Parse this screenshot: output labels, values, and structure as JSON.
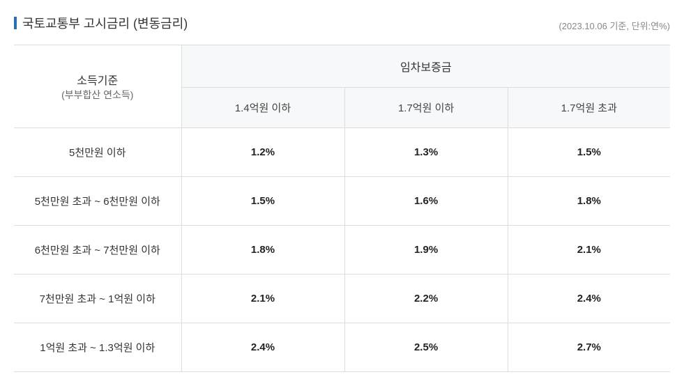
{
  "title": "국토교통부 고시금리 (변동금리)",
  "meta": "(2023.10.06 기준, 단위:연%)",
  "header": {
    "row_label_line1": "소득기준",
    "row_label_line2": "(부부합산 연소득)",
    "group_label": "임차보증금",
    "columns": [
      "1.4억원 이하",
      "1.7억원 이하",
      "1.7억원 초과"
    ]
  },
  "rows": [
    {
      "label": "5천만원 이하",
      "values": [
        "1.2%",
        "1.3%",
        "1.5%"
      ]
    },
    {
      "label": "5천만원 초과 ~ 6천만원 이하",
      "values": [
        "1.5%",
        "1.6%",
        "1.8%"
      ]
    },
    {
      "label": "6천만원 초과 ~ 7천만원 이하",
      "values": [
        "1.8%",
        "1.9%",
        "2.1%"
      ]
    },
    {
      "label": "7천만원 초과 ~ 1억원 이하",
      "values": [
        "2.1%",
        "2.2%",
        "2.4%"
      ]
    },
    {
      "label": "1억원 초과 ~ 1.3억원 이하",
      "values": [
        "2.4%",
        "2.5%",
        "2.7%"
      ]
    }
  ],
  "colors": {
    "accent": "#2a6fb0",
    "border_top": "#333333",
    "border": "#dddddd",
    "header_bg": "#f7f8f9",
    "text": "#333333",
    "meta_text": "#888888",
    "value_text": "#222222"
  }
}
